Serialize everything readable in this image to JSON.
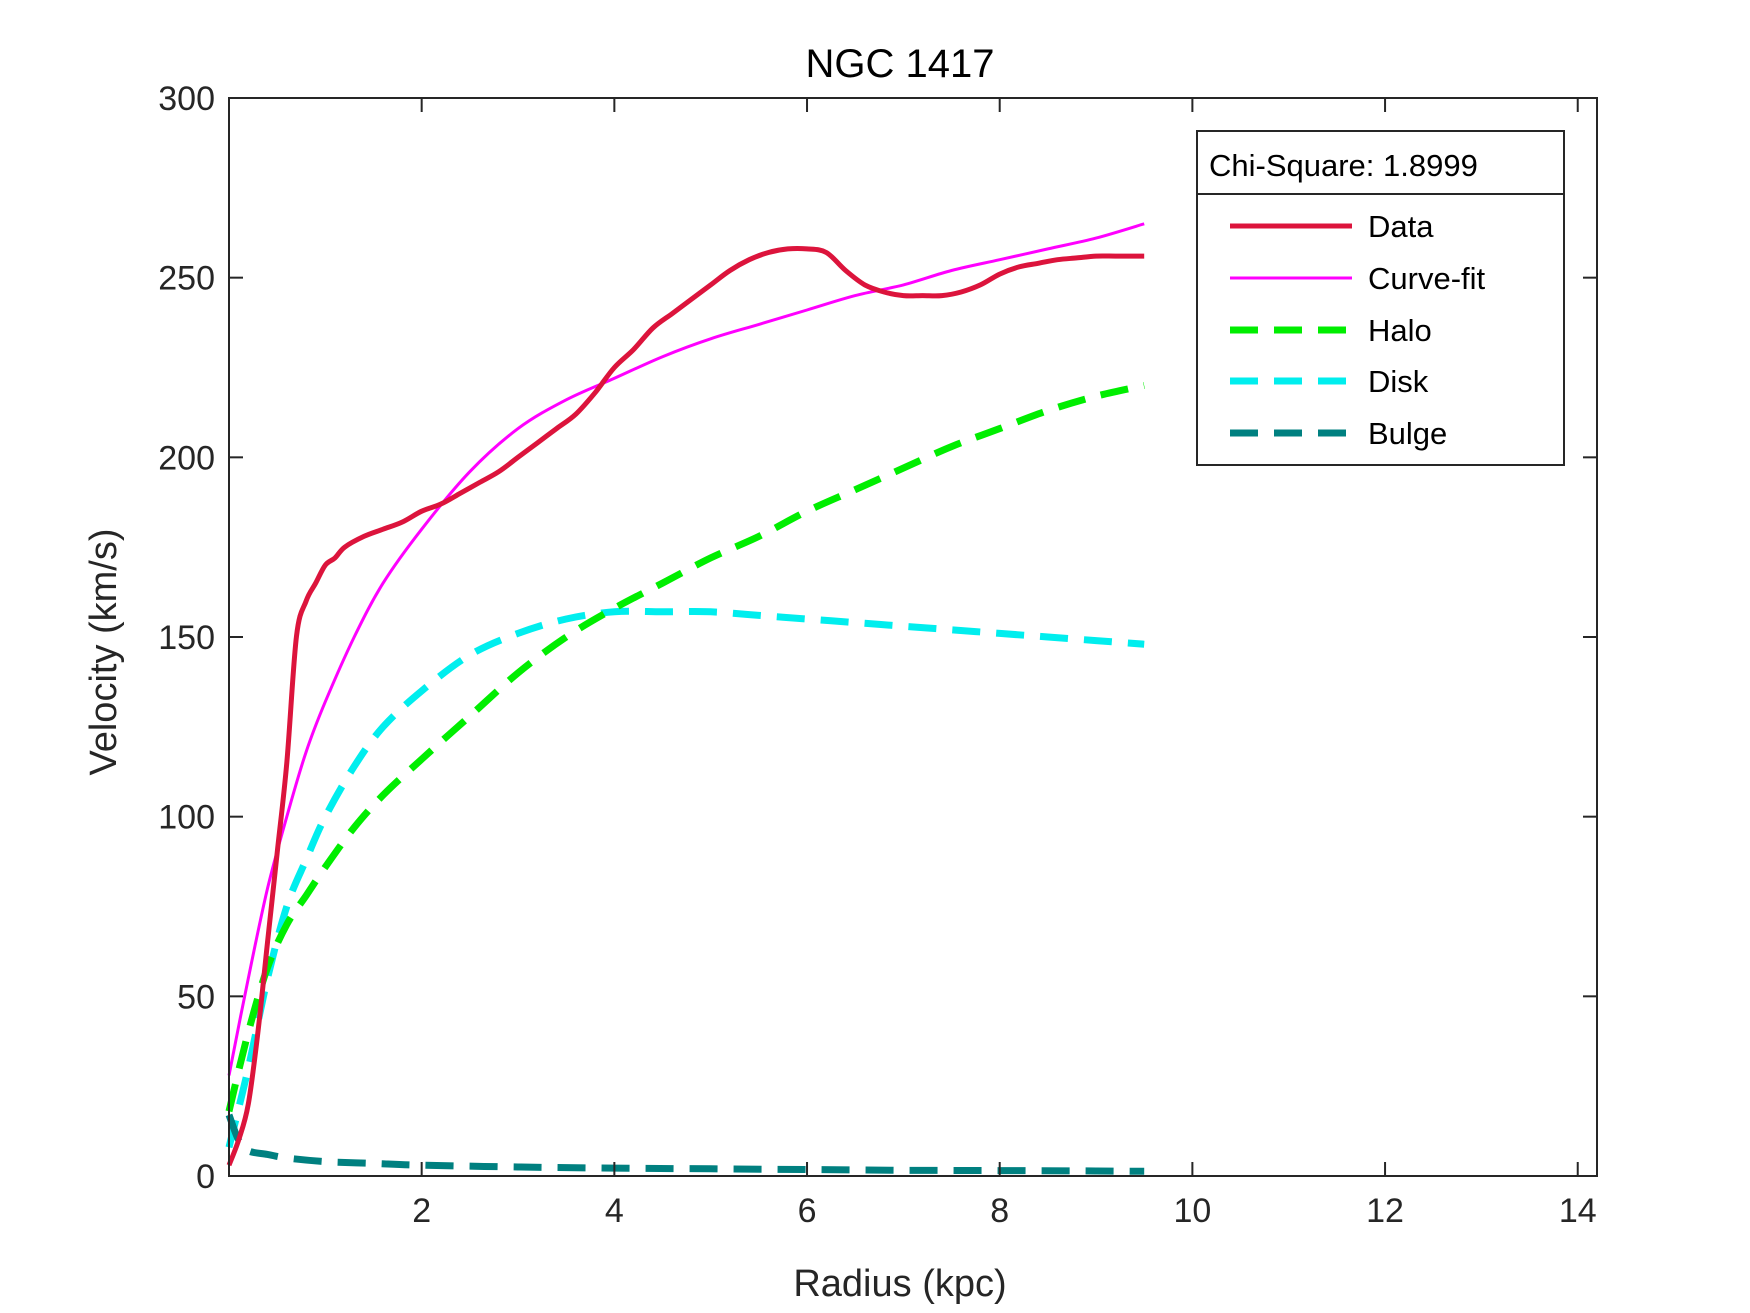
{
  "chart_data": {
    "type": "line",
    "title": "NGC 1417",
    "xlabel": "Radius (kpc)",
    "ylabel": "Velocity (km/s)",
    "xlim": [
      0,
      14.2
    ],
    "ylim": [
      0,
      300
    ],
    "xticks": [
      2,
      4,
      6,
      8,
      10,
      12,
      14
    ],
    "yticks": [
      0,
      50,
      100,
      150,
      200,
      250,
      300
    ],
    "xtick_labels": [
      "2",
      "4",
      "6",
      "8",
      "10",
      "12",
      "14"
    ],
    "ytick_labels": [
      "0",
      "50",
      "100",
      "150",
      "200",
      "250",
      "300"
    ],
    "grid": false,
    "legend": {
      "placement": "top-right",
      "header": "Chi-Square: 1.8999"
    },
    "series": [
      {
        "name": "Data",
        "color": "#dc143c",
        "style": "solid",
        "x": [
          0.0,
          0.1,
          0.2,
          0.3,
          0.4,
          0.5,
          0.6,
          0.7,
          0.8,
          0.9,
          1.0,
          1.1,
          1.2,
          1.4,
          1.6,
          1.8,
          2.0,
          2.2,
          2.4,
          2.6,
          2.8,
          3.0,
          3.2,
          3.4,
          3.6,
          3.8,
          4.0,
          4.2,
          4.4,
          4.6,
          4.8,
          5.0,
          5.2,
          5.4,
          5.6,
          5.8,
          6.0,
          6.2,
          6.4,
          6.6,
          6.8,
          7.0,
          7.2,
          7.4,
          7.6,
          7.8,
          8.0,
          8.2,
          8.4,
          8.6,
          8.8,
          9.0,
          9.2,
          9.4,
          9.5
        ],
        "y": [
          3,
          10,
          20,
          40,
          65,
          90,
          115,
          150,
          160,
          165,
          170,
          172,
          175,
          178,
          180,
          182,
          185,
          187,
          190,
          193,
          196,
          200,
          204,
          208,
          212,
          218,
          225,
          230,
          236,
          240,
          244,
          248,
          252,
          255,
          257,
          258,
          258,
          257,
          252,
          248,
          246,
          245,
          245,
          245,
          246,
          248,
          251,
          253,
          254,
          255,
          255.5,
          256,
          256,
          256,
          256
        ]
      },
      {
        "name": "Curve-fit",
        "color": "#ff00ff",
        "style": "solid-thin",
        "x": [
          0.0,
          0.2,
          0.4,
          0.6,
          0.8,
          1.0,
          1.3,
          1.6,
          2.0,
          2.5,
          3.0,
          3.5,
          4.0,
          4.5,
          5.0,
          5.5,
          6.0,
          6.5,
          7.0,
          7.5,
          8.0,
          8.5,
          9.0,
          9.5
        ],
        "y": [
          28,
          55,
          80,
          100,
          118,
          132,
          150,
          165,
          180,
          196,
          208,
          216,
          222,
          228,
          233,
          237,
          241,
          245,
          248,
          252,
          255,
          258,
          261,
          265
        ]
      },
      {
        "name": "Halo",
        "color": "#00ee00",
        "style": "dashed",
        "x": [
          0.0,
          0.2,
          0.4,
          0.6,
          0.8,
          1.0,
          1.3,
          1.6,
          2.0,
          2.5,
          3.0,
          3.5,
          4.0,
          4.5,
          5.0,
          5.5,
          6.0,
          6.5,
          7.0,
          7.5,
          8.0,
          8.5,
          9.0,
          9.5
        ],
        "y": [
          18,
          40,
          58,
          70,
          78,
          86,
          97,
          106,
          116,
          128,
          140,
          150,
          158,
          165,
          172,
          178,
          185,
          191,
          197,
          203,
          208,
          213,
          217,
          220
        ]
      },
      {
        "name": "Disk",
        "color": "#00eeee",
        "style": "dashed",
        "x": [
          0.0,
          0.2,
          0.4,
          0.6,
          0.8,
          1.0,
          1.3,
          1.6,
          2.0,
          2.5,
          3.0,
          3.5,
          4.0,
          4.5,
          5.0,
          5.5,
          6.0,
          6.5,
          7.0,
          7.5,
          8.0,
          8.5,
          9.0,
          9.5
        ],
        "y": [
          8,
          30,
          55,
          75,
          88,
          100,
          114,
          125,
          135,
          145,
          151,
          155,
          157,
          157,
          157,
          156,
          155,
          154,
          153,
          152,
          151,
          150,
          149,
          148
        ]
      },
      {
        "name": "Bulge",
        "color": "#008080",
        "style": "dashed",
        "x": [
          0.0,
          0.1,
          0.2,
          0.4,
          0.6,
          1.0,
          1.5,
          2.0,
          3.0,
          4.0,
          5.0,
          6.0,
          7.0,
          8.0,
          9.0,
          9.5
        ],
        "y": [
          17,
          10,
          7,
          6,
          5,
          4,
          3.5,
          3,
          2.5,
          2.2,
          2,
          1.8,
          1.6,
          1.5,
          1.4,
          1.3
        ]
      }
    ]
  }
}
